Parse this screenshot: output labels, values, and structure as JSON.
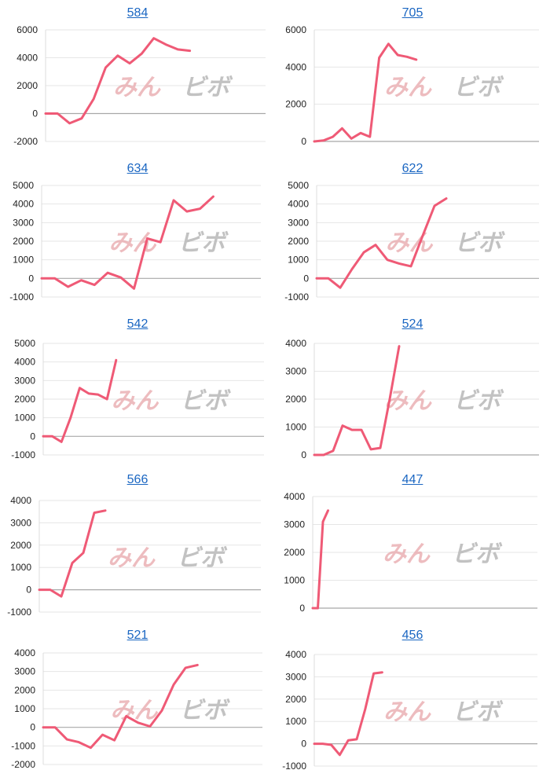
{
  "watermark": {
    "part1": "みん",
    "part2": "ビボ",
    "color1": "#e8a6aa",
    "color2": "#b3b3b3"
  },
  "line_color": "#ef5a76",
  "chart_data": [
    {
      "type": "line",
      "title": "584",
      "ylim": [
        -2000,
        6000
      ],
      "yticks": [
        -2000,
        0,
        2000,
        4000,
        6000
      ],
      "tick_labels": [
        "-2000",
        "0",
        "2000",
        "4000",
        "6000"
      ],
      "values": [
        0,
        0,
        -700,
        -350,
        1050,
        3300,
        4150,
        3600,
        4300,
        5400,
        4950,
        4600,
        4500
      ]
    },
    {
      "type": "line",
      "title": "705",
      "ylim": [
        0,
        6000
      ],
      "yticks": [
        0,
        2000,
        4000,
        6000
      ],
      "tick_labels": [
        "0",
        "2000",
        "4000",
        "6000"
      ],
      "values": [
        0,
        50,
        250,
        700,
        150,
        450,
        250,
        4500,
        5250,
        4650,
        4550,
        4400
      ]
    },
    {
      "type": "line",
      "title": "634",
      "ylim": [
        -1000,
        5000
      ],
      "yticks": [
        -1000,
        0,
        1000,
        2000,
        3000,
        4000,
        5000
      ],
      "tick_labels": [
        "-1000",
        "0",
        "1000",
        "2000",
        "3000",
        "4000",
        "5000"
      ],
      "values": [
        0,
        0,
        -450,
        -100,
        -350,
        300,
        50,
        -550,
        2150,
        1950,
        4200,
        3600,
        3750,
        4400
      ]
    },
    {
      "type": "line",
      "title": "622",
      "ylim": [
        -1000,
        5000
      ],
      "yticks": [
        -1000,
        0,
        1000,
        2000,
        3000,
        4000,
        5000
      ],
      "tick_labels": [
        "-1000",
        "0",
        "1000",
        "2000",
        "3000",
        "4000",
        "5000"
      ],
      "values": [
        0,
        0,
        -500,
        500,
        1400,
        1800,
        1000,
        800,
        650,
        2300,
        3900,
        4300
      ]
    },
    {
      "type": "line",
      "title": "542",
      "ylim": [
        -1000,
        5000
      ],
      "yticks": [
        -1000,
        0,
        1000,
        2000,
        3000,
        4000,
        5000
      ],
      "tick_labels": [
        "-1000",
        "0",
        "1000",
        "2000",
        "3000",
        "4000",
        "5000"
      ],
      "values": [
        0,
        0,
        -300,
        1000,
        2600,
        2300,
        2250,
        2000,
        4100
      ]
    },
    {
      "type": "line",
      "title": "524",
      "ylim": [
        0,
        4000
      ],
      "yticks": [
        0,
        1000,
        2000,
        3000,
        4000
      ],
      "tick_labels": [
        "0",
        "1000",
        "2000",
        "3000",
        "4000"
      ],
      "values": [
        0,
        0,
        150,
        1050,
        900,
        900,
        200,
        250,
        2000,
        3900
      ]
    },
    {
      "type": "line",
      "title": "566",
      "ylim": [
        -1000,
        4000
      ],
      "yticks": [
        -1000,
        0,
        1000,
        2000,
        3000,
        4000
      ],
      "tick_labels": [
        "-1000",
        "0",
        "1000",
        "2000",
        "3000",
        "4000"
      ],
      "values": [
        0,
        0,
        -300,
        1200,
        1650,
        3450,
        3550
      ]
    },
    {
      "type": "line",
      "title": "447",
      "ylim": [
        0,
        4000
      ],
      "yticks": [
        0,
        1000,
        2000,
        3000,
        4000
      ],
      "tick_labels": [
        "0",
        "1000",
        "2000",
        "3000",
        "4000"
      ],
      "values": [
        0,
        0,
        3100,
        3500
      ]
    },
    {
      "type": "line",
      "title": "521",
      "ylim": [
        -2000,
        4000
      ],
      "yticks": [
        -2000,
        -1000,
        0,
        1000,
        2000,
        3000,
        4000
      ],
      "tick_labels": [
        "-2000",
        "-1000",
        "0",
        "1000",
        "2000",
        "3000",
        "4000"
      ],
      "values": [
        0,
        0,
        -650,
        -800,
        -1100,
        -400,
        -700,
        600,
        250,
        50,
        900,
        2300,
        3200,
        3350
      ]
    },
    {
      "type": "line",
      "title": "456",
      "ylim": [
        -1000,
        4000
      ],
      "yticks": [
        -1000,
        0,
        1000,
        2000,
        3000,
        4000
      ],
      "tick_labels": [
        "-1000",
        "0",
        "1000",
        "2000",
        "3000",
        "4000"
      ],
      "values": [
        0,
        0,
        -50,
        -500,
        150,
        200,
        1550,
        3150,
        3200
      ]
    }
  ]
}
